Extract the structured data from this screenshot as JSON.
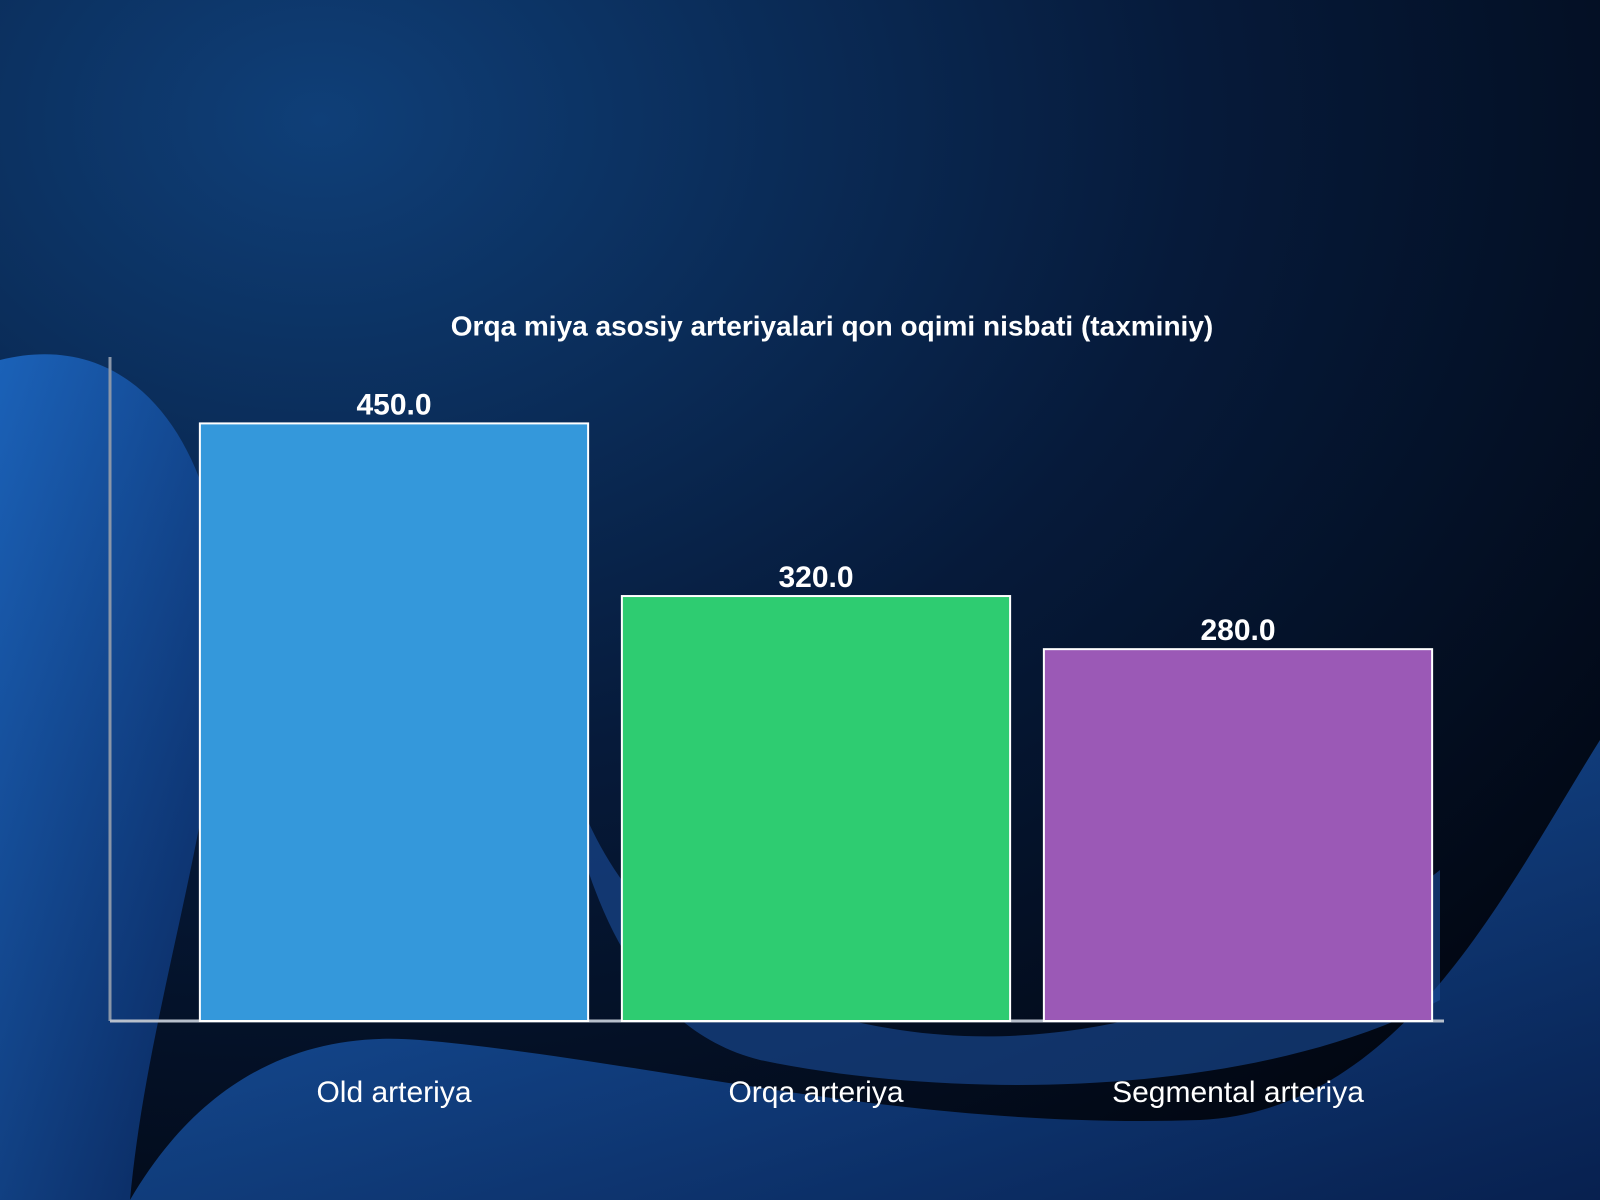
{
  "chart_data": {
    "type": "bar",
    "title": "Orqa miya asosiy arteriyalari qon oqimi nisbati (taxminiy)",
    "categories": [
      "Old arteriya",
      "Orqa arteriya",
      "Segmental arteriya"
    ],
    "values": [
      450,
      320,
      280
    ],
    "value_labels": [
      "450.0",
      "320.0",
      "280.0"
    ],
    "colors": [
      "#3498db",
      "#2ecc71",
      "#9b59b6"
    ],
    "ylim": [
      0,
      500
    ]
  }
}
